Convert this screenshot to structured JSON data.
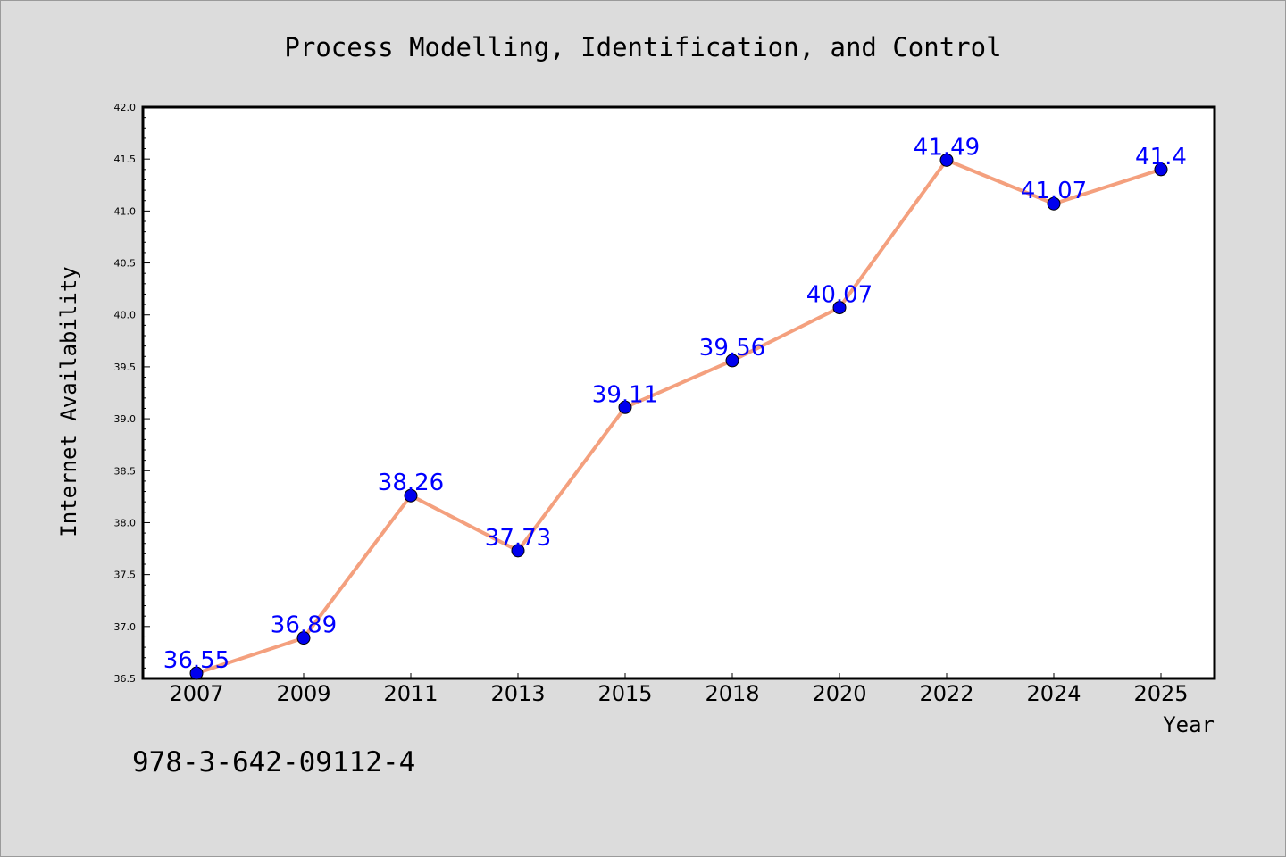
{
  "chart_data": {
    "type": "line",
    "title": "Process Modelling, Identification, and Control",
    "xlabel": "Year",
    "ylabel": "Internet Availability",
    "categories": [
      "2007",
      "2009",
      "2011",
      "2013",
      "2015",
      "2018",
      "2020",
      "2022",
      "2024",
      "2025"
    ],
    "values": [
      36.55,
      36.89,
      38.26,
      37.73,
      39.11,
      39.56,
      40.07,
      41.49,
      41.07,
      41.4
    ],
    "data_labels": [
      "36.55",
      "36.89",
      "38.26",
      "37.73",
      "39.11",
      "39.56",
      "40.07",
      "41.49",
      "41.07",
      "41.4"
    ],
    "ylim": [
      36.5,
      42.0
    ],
    "yticks": [
      "36.5",
      "37.0",
      "37.5",
      "38.0",
      "38.5",
      "39.0",
      "39.5",
      "40.0",
      "40.5",
      "41.0",
      "41.5",
      "42.0"
    ],
    "grid": false,
    "line_color": "#f4a07e",
    "marker_color": "#0000ee",
    "label_color": "#0000ff"
  },
  "footer": {
    "isbn": "978-3-642-09112-4"
  }
}
